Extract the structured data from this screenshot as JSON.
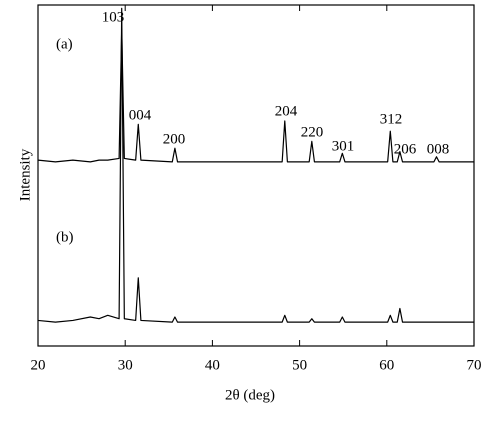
{
  "chart_data": {
    "type": "line",
    "x_label": "2θ (deg)",
    "y_label": "Intensity",
    "annotations": [
      "(a)",
      "103",
      "004",
      "200",
      "204",
      "220",
      "301",
      "312",
      "206",
      "008",
      "(b)"
    ],
    "x": [
      20,
      22,
      24,
      26,
      27,
      28,
      29.3,
      29.6,
      29.9,
      31.2,
      31.5,
      31.8,
      35.4,
      35.7,
      36,
      40,
      44,
      48,
      48.3,
      48.6,
      51.1,
      51.4,
      51.7,
      54.6,
      54.9,
      55.2,
      58,
      60.1,
      60.4,
      60.7,
      61.2,
      61.5,
      61.8,
      65.4,
      65.7,
      66,
      70
    ],
    "series": [
      {
        "name": "(a)",
        "color": "#000000",
        "values": [
          54.5,
          54,
          54.5,
          54,
          54.5,
          54.5,
          55,
          93,
          55,
          54.5,
          65,
          54.5,
          54,
          58,
          54,
          54,
          54,
          54,
          66,
          54,
          54,
          60,
          54,
          54,
          56.5,
          54,
          54,
          54,
          63,
          54,
          54,
          57,
          54,
          54,
          55.5,
          54,
          54
        ]
      },
      {
        "name": "(b)",
        "color": "#000000",
        "values": [
          7.5,
          7,
          7.5,
          8.5,
          8,
          9,
          8,
          99,
          8,
          7.5,
          20,
          7.5,
          7,
          8.5,
          7,
          7,
          7,
          7,
          9,
          7,
          7,
          8,
          7,
          7,
          8.5,
          7,
          7,
          7,
          9,
          7,
          7,
          11,
          7,
          7,
          7,
          7,
          7
        ]
      }
    ],
    "xlim": [
      20,
      70
    ],
    "xticks": [
      20,
      30,
      40,
      50,
      60,
      70
    ],
    "ylim": [
      0,
      100
    ]
  }
}
